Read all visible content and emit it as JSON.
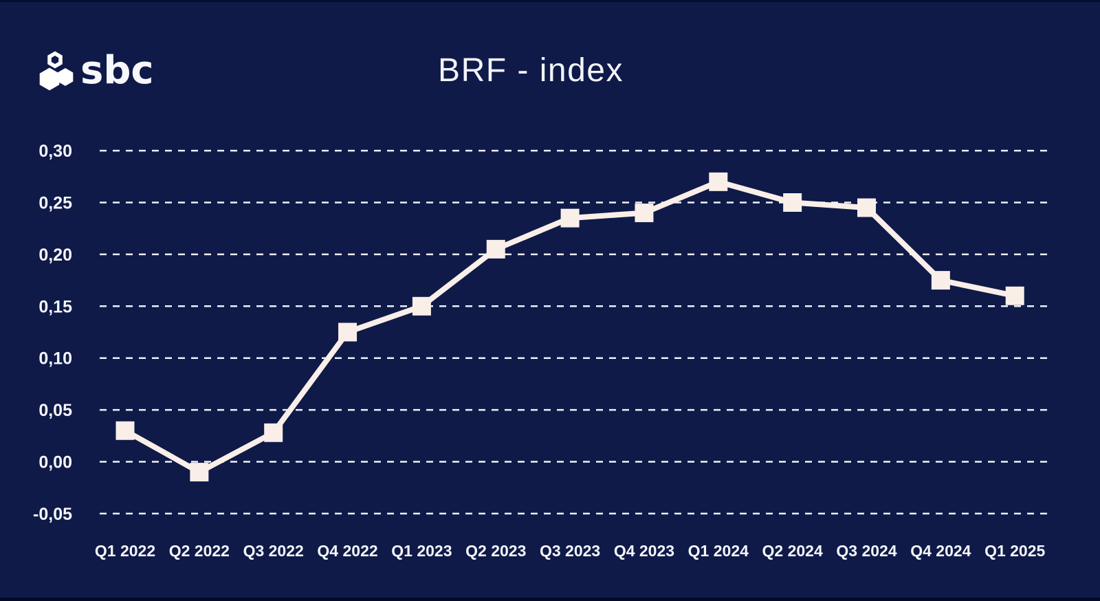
{
  "header": {
    "logo_text": "sbc",
    "title": "BRF - index"
  },
  "chart_data": {
    "type": "line",
    "title": "BRF - index",
    "categories": [
      "Q1 2022",
      "Q2 2022",
      "Q3 2022",
      "Q4 2022",
      "Q1 2023",
      "Q2 2023",
      "Q3 2023",
      "Q4 2023",
      "Q1 2024",
      "Q2 2024",
      "Q3 2024",
      "Q4 2024",
      "Q1 2025"
    ],
    "series": [
      {
        "name": "BRF-index",
        "values": [
          0.03,
          -0.01,
          0.028,
          0.125,
          0.15,
          0.205,
          0.235,
          0.24,
          0.27,
          0.25,
          0.245,
          0.175,
          0.16
        ]
      }
    ],
    "yticks": [
      {
        "value": 0.3,
        "label": "0,30"
      },
      {
        "value": 0.25,
        "label": "0,25"
      },
      {
        "value": 0.2,
        "label": "0,20"
      },
      {
        "value": 0.15,
        "label": "0,15"
      },
      {
        "value": 0.1,
        "label": "0,10"
      },
      {
        "value": 0.05,
        "label": "0,05"
      },
      {
        "value": 0.0,
        "label": "0,00"
      },
      {
        "value": -0.05,
        "label": "-0,05"
      }
    ],
    "ylim": [
      -0.05,
      0.3
    ],
    "xlabel": "",
    "ylabel": "",
    "decimal_separator": ",",
    "grid": "horizontal-dashed",
    "legend": "none",
    "marker": "square",
    "colors": {
      "background": "#0f1a48",
      "line": "#f9efe8",
      "grid": "#eef1f7",
      "text": "#f5f6fa"
    }
  }
}
